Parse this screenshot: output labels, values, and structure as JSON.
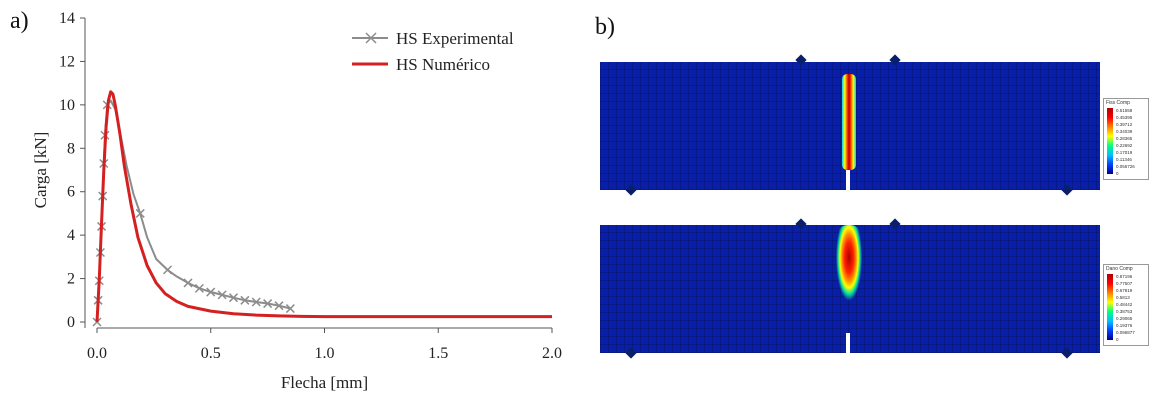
{
  "panel_a_label": "a)",
  "panel_b_label": "b)",
  "chart_data": {
    "type": "line",
    "xlabel": "Flecha [mm]",
    "ylabel": "Carga [kN]",
    "xlim": [
      0.0,
      2.0
    ],
    "ylim": [
      0,
      14
    ],
    "xticks": [
      "0.0",
      "0.5",
      "1.0",
      "1.5",
      "2.0"
    ],
    "yticks": [
      "0",
      "2",
      "4",
      "6",
      "8",
      "10",
      "12",
      "14"
    ],
    "legend_position": "top-right",
    "series": [
      {
        "name": "HS Experimental",
        "color": "#8c8c8c",
        "marker": "x",
        "x": [
          0.0,
          0.005,
          0.01,
          0.015,
          0.02,
          0.025,
          0.03,
          0.035,
          0.045,
          0.06,
          0.08,
          0.1,
          0.13,
          0.16,
          0.19,
          0.22,
          0.26,
          0.31,
          0.35,
          0.4,
          0.45,
          0.5,
          0.55,
          0.6,
          0.65,
          0.7,
          0.75,
          0.8,
          0.85
        ],
        "y": [
          0.0,
          1.0,
          1.9,
          3.2,
          4.4,
          5.8,
          7.3,
          8.6,
          10.0,
          10.2,
          9.8,
          8.8,
          7.2,
          5.9,
          5.0,
          3.9,
          2.9,
          2.4,
          2.1,
          1.8,
          1.55,
          1.38,
          1.25,
          1.12,
          1.0,
          0.92,
          0.85,
          0.75,
          0.62
        ],
        "marker_x": [
          0.0,
          0.005,
          0.01,
          0.015,
          0.02,
          0.025,
          0.03,
          0.035,
          0.045,
          0.19,
          0.31,
          0.4,
          0.45,
          0.5,
          0.55,
          0.6,
          0.65,
          0.7,
          0.75,
          0.8,
          0.85
        ],
        "marker_y": [
          0.0,
          1.0,
          1.9,
          3.2,
          4.4,
          5.8,
          7.3,
          8.6,
          10.0,
          5.0,
          2.4,
          1.8,
          1.55,
          1.38,
          1.25,
          1.12,
          1.0,
          0.92,
          0.85,
          0.75,
          0.62
        ]
      },
      {
        "name": "HS Numérico",
        "color": "#d42020",
        "x": [
          0.0,
          0.01,
          0.02,
          0.03,
          0.04,
          0.05,
          0.06,
          0.07,
          0.08,
          0.1,
          0.12,
          0.15,
          0.18,
          0.22,
          0.26,
          0.3,
          0.35,
          0.4,
          0.5,
          0.6,
          0.7,
          0.8,
          0.9,
          1.0,
          1.5,
          2.0
        ],
        "y": [
          0.0,
          2.0,
          4.5,
          7.0,
          9.0,
          10.2,
          10.6,
          10.5,
          10.0,
          8.7,
          7.2,
          5.4,
          3.9,
          2.6,
          1.8,
          1.3,
          0.95,
          0.72,
          0.5,
          0.38,
          0.32,
          0.28,
          0.26,
          0.25,
          0.25,
          0.25
        ]
      }
    ]
  },
  "contour_top": {
    "legend_title": "Fiss Comp",
    "legend_values": [
      "0.51558",
      "0.45395",
      "0.39712",
      "0.34039",
      "0.28365",
      "0.22692",
      "0.17019",
      "0.11346",
      "0.056726",
      "0"
    ]
  },
  "contour_bottom": {
    "legend_title": "Dano Comp",
    "legend_values": [
      "0.87196",
      "0.77507",
      "0.67819",
      "0.5813",
      "0.48442",
      "0.38753",
      "0.29065",
      "0.19376",
      "0.096877",
      "0"
    ]
  }
}
